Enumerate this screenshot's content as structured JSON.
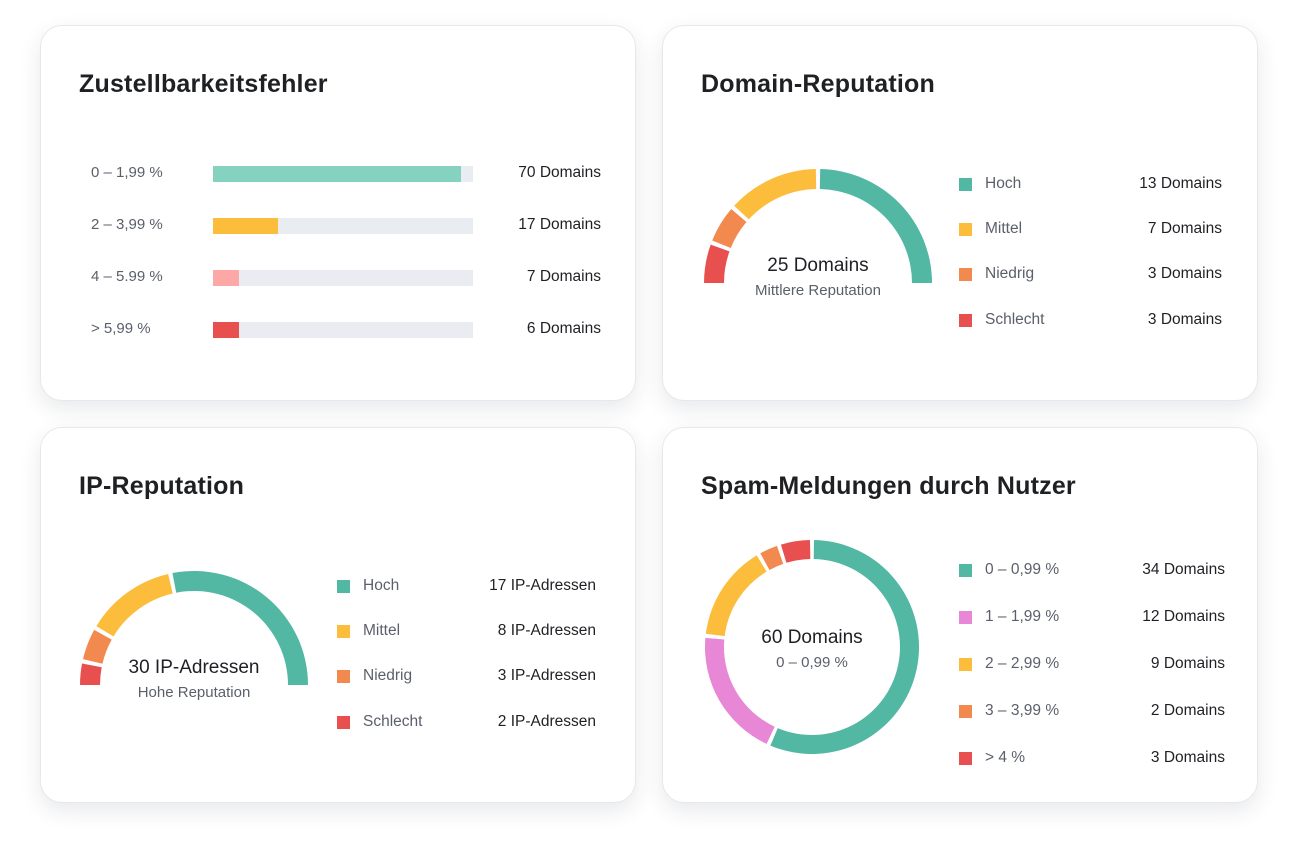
{
  "colors": {
    "teal": "#52b8a4",
    "teal_light": "#86d2c0",
    "yellow": "#fbbd3b",
    "orange": "#f28a50",
    "red": "#e8504f",
    "pink": "#fba8a6",
    "magenta": "#e787d5",
    "track": "#e9ecf0"
  },
  "delivery": {
    "title": "Zustellbarkeitsfehler",
    "rows": [
      {
        "range": "0 – 1,99 %",
        "count": "70 Domains",
        "fraction": 0.955,
        "color": "#86d2c0"
      },
      {
        "range": "2 – 3,99 %",
        "count": "17 Domains",
        "fraction": 0.25,
        "color": "#fbbd3b"
      },
      {
        "range": "4 – 5.99 %",
        "count": "7 Domains",
        "fraction": 0.1,
        "color": "#fba8a6"
      },
      {
        "range": "> 5,99 %",
        "count": "6 Domains",
        "fraction": 0.1,
        "color": "#e8504f"
      }
    ]
  },
  "domain": {
    "title": "Domain-Reputation",
    "center_value": "25 Domains",
    "center_sub": "Mittlere Reputation",
    "legend": [
      {
        "label": "Hoch",
        "value": "13 Domains",
        "count": 13,
        "color": "#52b8a4"
      },
      {
        "label": "Mittel",
        "value": "7 Domains",
        "count": 7,
        "color": "#fbbd3b"
      },
      {
        "label": "Niedrig",
        "value": "3 Domains",
        "count": 3,
        "color": "#f28a50"
      },
      {
        "label": "Schlecht",
        "value": "3 Domains",
        "count": 3,
        "color": "#e8504f"
      }
    ]
  },
  "ip": {
    "title": "IP-Reputation",
    "center_value": "30 IP-Adressen",
    "center_sub": "Hohe Reputation",
    "legend": [
      {
        "label": "Hoch",
        "value": "17 IP-Adressen",
        "count": 17,
        "color": "#52b8a4"
      },
      {
        "label": "Mittel",
        "value": "8 IP-Adressen",
        "count": 8,
        "color": "#fbbd3b"
      },
      {
        "label": "Niedrig",
        "value": "3 IP-Adressen",
        "count": 3,
        "color": "#f28a50"
      },
      {
        "label": "Schlecht",
        "value": "2 IP-Adressen",
        "count": 2,
        "color": "#e8504f"
      }
    ]
  },
  "spam": {
    "title": "Spam-Meldungen durch Nutzer",
    "center_value": "60 Domains",
    "center_sub": "0 – 0,99 %",
    "legend": [
      {
        "label": "0 – 0,99 %",
        "value": "34 Domains",
        "count": 34,
        "color": "#52b8a4"
      },
      {
        "label": "1 – 1,99 %",
        "value": "12 Domains",
        "count": 12,
        "color": "#e787d5"
      },
      {
        "label": "2 – 2,99 %",
        "value": "9 Domains",
        "count": 9,
        "color": "#fbbd3b"
      },
      {
        "label": "3 – 3,99 %",
        "value": "2 Domains",
        "count": 2,
        "color": "#f28a50"
      },
      {
        "label": "> 4 %",
        "value": "3 Domains",
        "count": 3,
        "color": "#e8504f"
      }
    ]
  }
}
